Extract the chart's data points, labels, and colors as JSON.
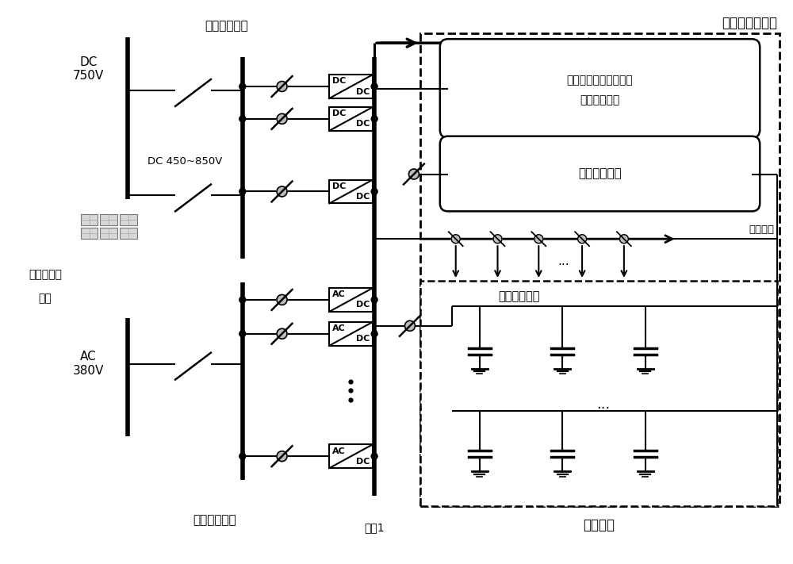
{
  "bg_color": "#ffffff",
  "labels": {
    "dc_bus_top": "直流供电母线",
    "ac_bus_bottom": "交流供电母线",
    "bus1": "母线1",
    "renewable_line1": "可再生能源",
    "renewable_line2": "发电",
    "dc750": "DC\n750V",
    "dc450": "DC 450~850V",
    "ac380": "AC\n380V",
    "multi_module_line1": "多类型交直流变换模块",
    "multi_module_line2": "并联均流控制",
    "state_monitor": "状态监测系统",
    "dc_load_label": "数据中心负荷",
    "dist_bus": "配电母线",
    "battery": "蓄电池组",
    "main_ctrl": "电源主控制系统"
  }
}
